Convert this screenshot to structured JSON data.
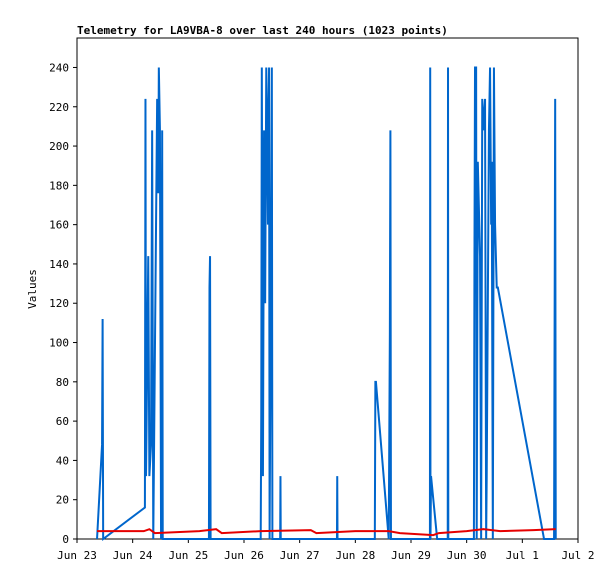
{
  "chart_data": {
    "type": "line",
    "title": "Telemetry for LA9VBA-8 over last 240 hours (1023 points)",
    "y_label": "Values",
    "xlim": [
      0,
      9
    ],
    "xticks": [
      {
        "value": 0,
        "label": "Jun 23"
      },
      {
        "value": 1,
        "label": "Jun 24"
      },
      {
        "value": 2,
        "label": "Jun 25"
      },
      {
        "value": 3,
        "label": "Jun 26"
      },
      {
        "value": 4,
        "label": "Jun 27"
      },
      {
        "value": 5,
        "label": "Jun 28"
      },
      {
        "value": 6,
        "label": "Jun 29"
      },
      {
        "value": 7,
        "label": "Jun 30"
      },
      {
        "value": 8,
        "label": "Jul 1"
      },
      {
        "value": 9,
        "label": "Jul 2"
      }
    ],
    "ylim": [
      0,
      255
    ],
    "yticks": [
      0,
      20,
      40,
      60,
      80,
      100,
      120,
      140,
      160,
      180,
      200,
      220,
      240
    ],
    "grid": false,
    "series": [
      {
        "color": "#0066cc",
        "x": [
          0.36,
          0.45,
          0.46,
          0.47,
          1.22,
          1.23,
          1.24,
          1.28,
          1.3,
          1.33,
          1.35,
          1.37,
          1.44,
          1.46,
          1.47,
          1.49,
          1.51,
          1.53,
          1.54,
          2.37,
          2.38,
          2.39,
          2.4,
          3.3,
          3.31,
          3.32,
          3.34,
          3.36,
          3.38,
          3.4,
          3.41,
          3.43,
          3.45,
          3.46,
          3.5,
          3.51,
          3.65,
          3.655,
          3.66,
          4.67,
          4.675,
          4.68,
          5.35,
          5.36,
          5.37,
          5.6,
          5.62,
          5.63,
          5.64,
          6.34,
          6.345,
          6.35,
          6.36,
          6.47,
          6.66,
          6.665,
          6.67,
          7.13,
          7.14,
          7.15,
          7.17,
          7.18,
          7.2,
          7.24,
          7.26,
          7.28,
          7.31,
          7.33,
          7.35,
          7.36,
          7.4,
          7.42,
          7.44,
          7.45,
          7.47,
          7.49,
          7.51,
          7.54,
          7.56,
          8.39,
          8.57,
          8.58,
          8.59,
          8.6
        ],
        "values": [
          0,
          48,
          112,
          0,
          16,
          224,
          32,
          144,
          32,
          48,
          208,
          0,
          224,
          176,
          240,
          208,
          0,
          208,
          0,
          0,
          128,
          144,
          0,
          0,
          64,
          240,
          32,
          208,
          120,
          240,
          224,
          160,
          240,
          0,
          240,
          0,
          0,
          32,
          0,
          0,
          32,
          0,
          0,
          80,
          80,
          0,
          104,
          208,
          0,
          0,
          240,
          0,
          32,
          0,
          0,
          240,
          0,
          0,
          144,
          240,
          240,
          0,
          192,
          144,
          0,
          224,
          208,
          224,
          0,
          32,
          208,
          240,
          160,
          192,
          0,
          240,
          160,
          128,
          128,
          0,
          0,
          112,
          224,
          0
        ]
      },
      {
        "color": "#e60000",
        "x": [
          0.36,
          1.2,
          1.3,
          1.4,
          2.2,
          2.5,
          2.6,
          3.3,
          4.2,
          4.3,
          5.0,
          5.6,
          5.8,
          6.4,
          6.5,
          7.0,
          7.3,
          7.6,
          8.2,
          8.6
        ],
        "values": [
          4,
          4,
          5,
          3,
          4,
          5,
          3,
          4,
          4.5,
          3,
          4,
          4,
          3,
          2,
          3,
          4,
          5,
          4,
          4.5,
          5
        ]
      }
    ]
  }
}
